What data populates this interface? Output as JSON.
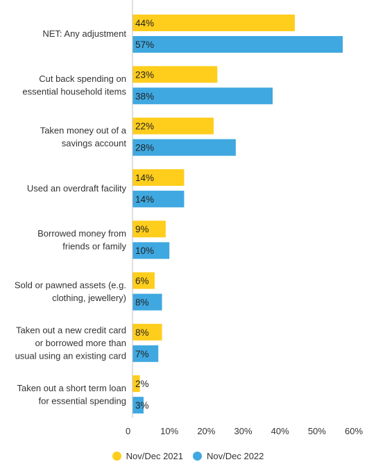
{
  "chart_data": {
    "type": "bar",
    "orientation": "horizontal",
    "categories": [
      [
        "NET: Any adjustment"
      ],
      [
        "Cut back spending on",
        "essential household items"
      ],
      [
        "Taken money out of a",
        "savings account"
      ],
      [
        "Used an overdraft facility"
      ],
      [
        "Borrowed money from",
        "friends or family"
      ],
      [
        "Sold or pawned assets (e.g.",
        "clothing, jewellery)"
      ],
      [
        "Taken out a new credit card",
        "or borrowed more than",
        "usual using an existing card"
      ],
      [
        "Taken out a short term loan",
        "for essential spending"
      ]
    ],
    "series": [
      {
        "name": "Nov/Dec 2021",
        "color": "#FFCD1C",
        "values": [
          44,
          23,
          22,
          14,
          9,
          6,
          8,
          2
        ],
        "labels": [
          "44%",
          "23%",
          "22%",
          "14%",
          "9%",
          "6%",
          "8%",
          "2%"
        ]
      },
      {
        "name": "Nov/Dec 2022",
        "color": "#3FA8E0",
        "values": [
          57,
          38,
          28,
          14,
          10,
          8,
          7,
          3
        ],
        "labels": [
          "57%",
          "38%",
          "28%",
          "14%",
          "10%",
          "8%",
          "7%",
          "3%"
        ]
      }
    ],
    "xlim": [
      0,
      60
    ],
    "xticks": [
      0,
      10,
      20,
      30,
      40,
      50,
      60
    ],
    "xtick_labels": [
      "0",
      "10%",
      "20%",
      "30%",
      "40%",
      "50%",
      "60%"
    ],
    "grid": false,
    "legend_position": "bottom"
  }
}
